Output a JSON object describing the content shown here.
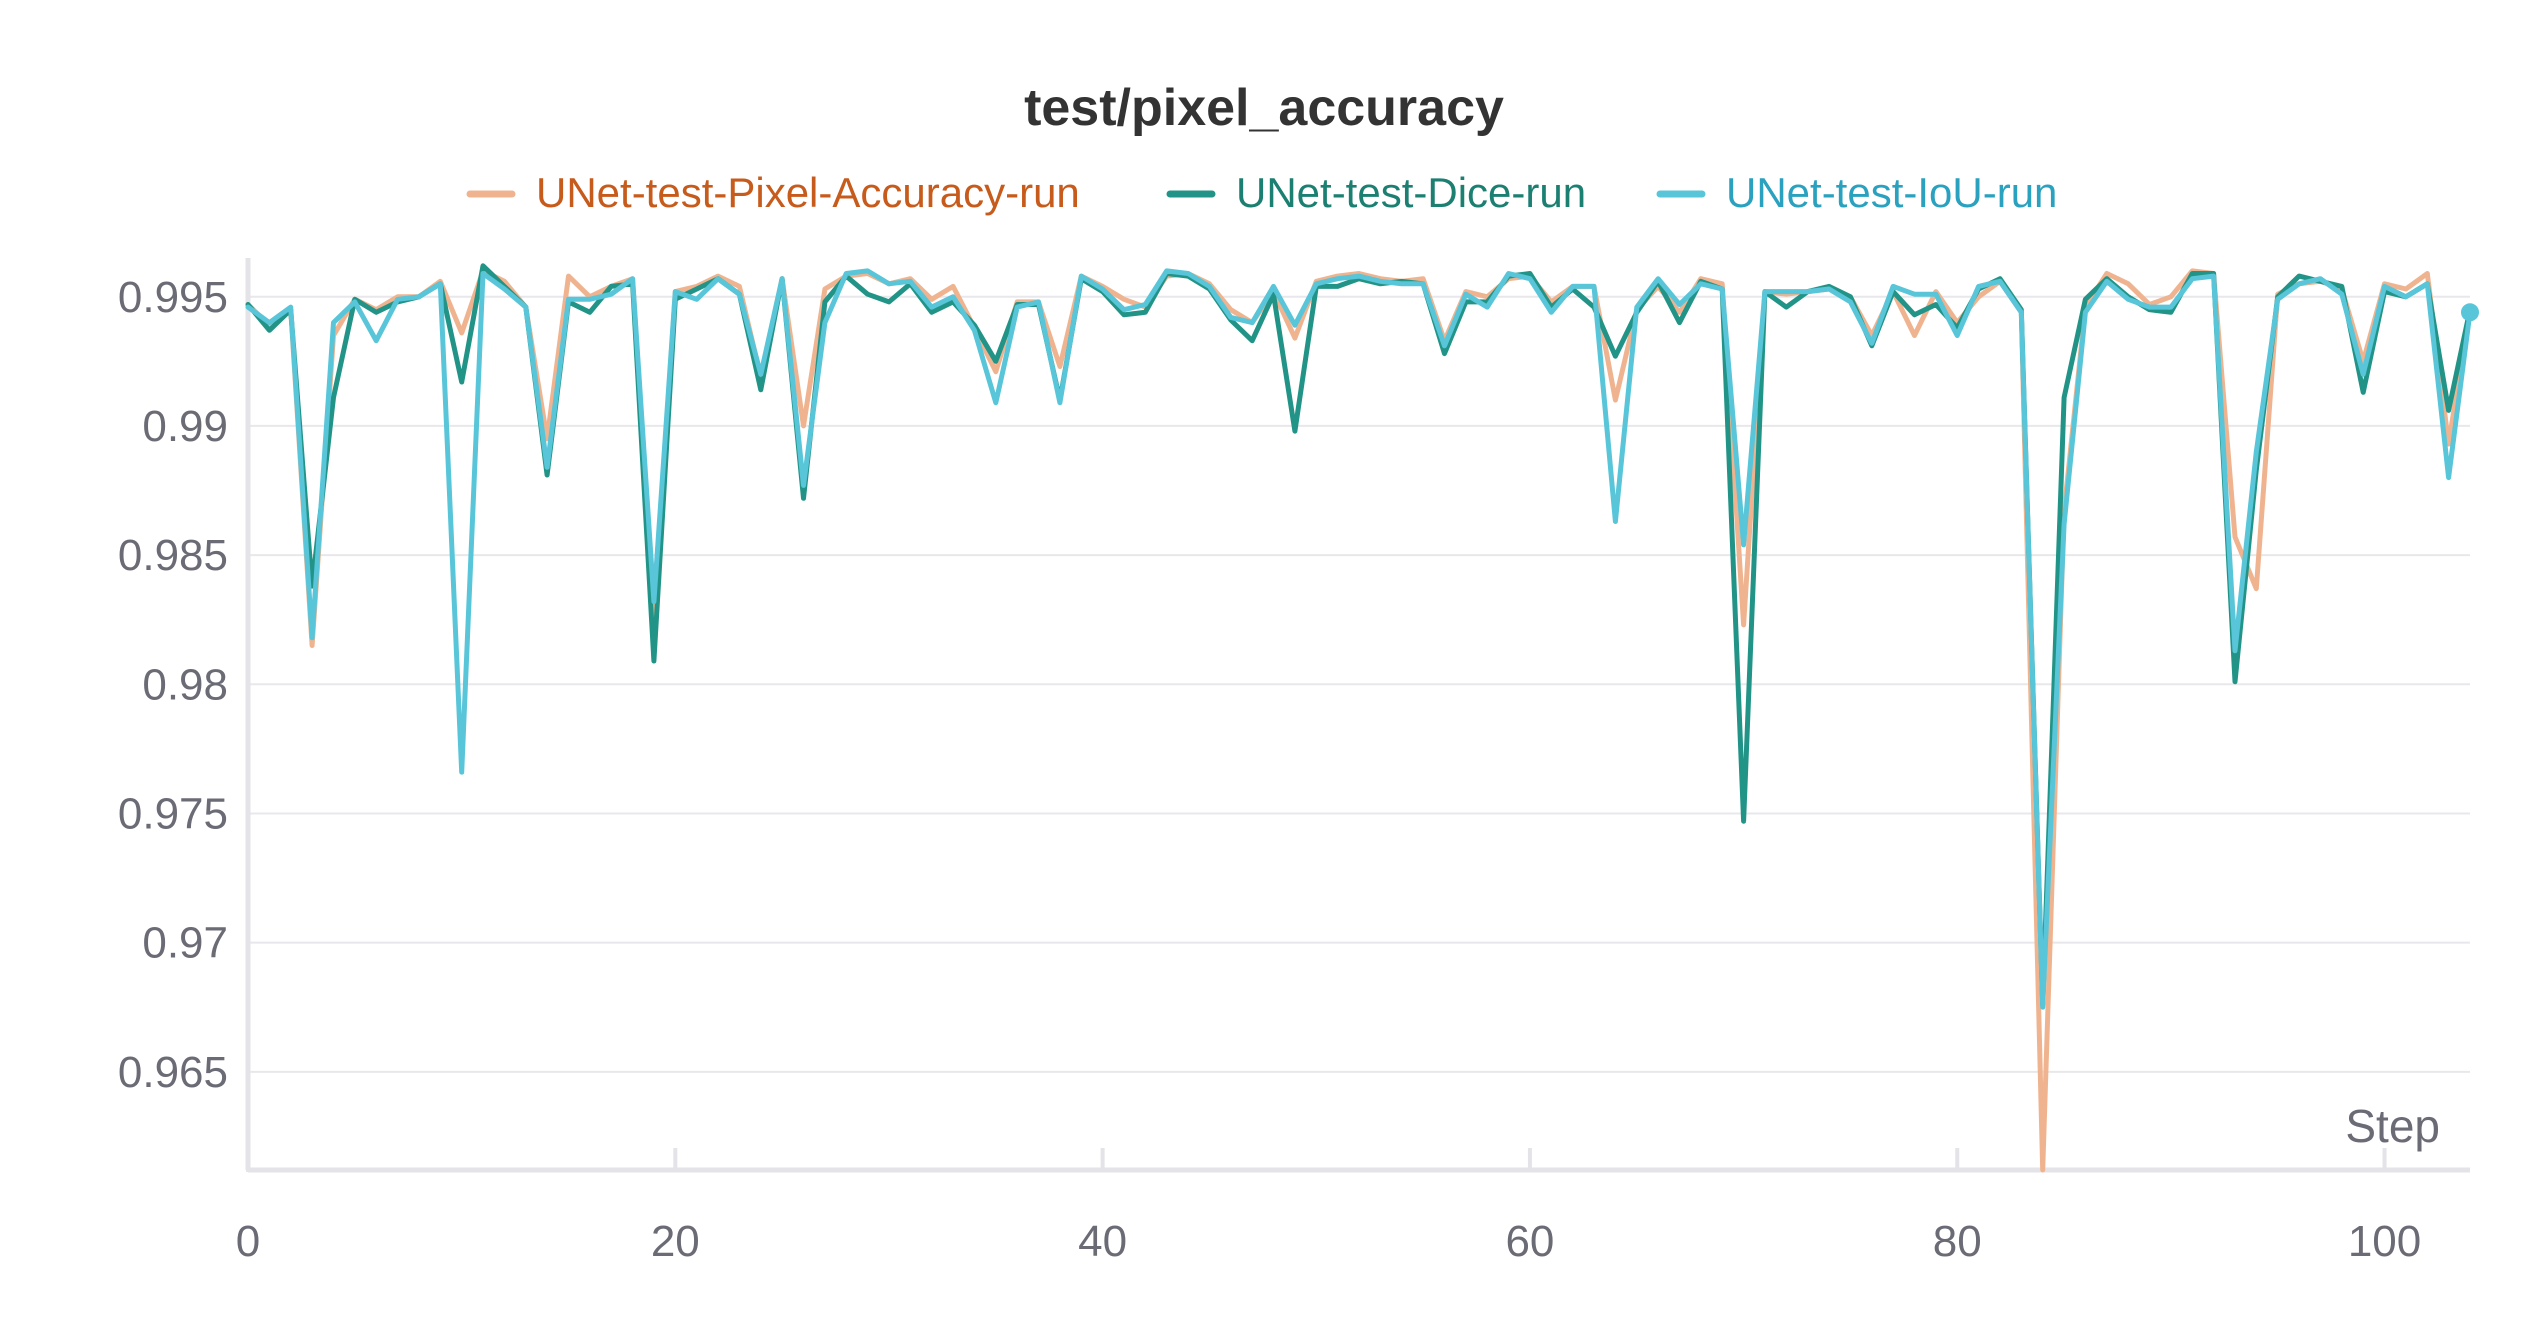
{
  "chart_data": {
    "type": "line",
    "title": "test/pixel_accuracy",
    "xlabel": "Step",
    "ylabel": "",
    "xlim": [
      0,
      104
    ],
    "ylim": [
      0.9612,
      0.9965
    ],
    "xticks": [
      "0",
      "20",
      "40",
      "60",
      "80",
      "100"
    ],
    "xtick_values": [
      0,
      20,
      40,
      60,
      80,
      100
    ],
    "yticks": [
      "0.965",
      "0.97",
      "0.975",
      "0.98",
      "0.985",
      "0.99",
      "0.995"
    ],
    "ytick_values": [
      0.965,
      0.97,
      0.975,
      0.98,
      0.985,
      0.99,
      0.995
    ],
    "grid": true,
    "legend_position": "top-center",
    "series": [
      {
        "name": "UNet-test-Pixel-Accuracy-run",
        "color": "#efb48f",
        "text_color": "#c75b1c",
        "values": [
          0.9947,
          0.9939,
          0.9945,
          0.9815,
          0.9935,
          0.9949,
          0.9945,
          0.995,
          0.995,
          0.9956,
          0.9936,
          0.996,
          0.9956,
          0.9946,
          0.9895,
          0.9958,
          0.995,
          0.9954,
          0.9957,
          0.9825,
          0.9952,
          0.9954,
          0.9958,
          0.9954,
          0.9919,
          0.9957,
          0.99,
          0.9953,
          0.9958,
          0.9959,
          0.9955,
          0.9957,
          0.9949,
          0.9954,
          0.9938,
          0.9921,
          0.9948,
          0.9948,
          0.9923,
          0.9958,
          0.9954,
          0.9949,
          0.9946,
          0.9958,
          0.9959,
          0.9955,
          0.9945,
          0.994,
          0.9952,
          0.9934,
          0.9956,
          0.9958,
          0.9959,
          0.9957,
          0.9956,
          0.9957,
          0.9933,
          0.9952,
          0.995,
          0.9957,
          0.9958,
          0.9948,
          0.9954,
          0.9954,
          0.991,
          0.9945,
          0.9954,
          0.9944,
          0.9957,
          0.9955,
          0.9823,
          0.9952,
          0.9951,
          0.9952,
          0.9953,
          0.995,
          0.9935,
          0.9952,
          0.9935,
          0.9952,
          0.994,
          0.995,
          0.9956,
          0.9944,
          0.9612,
          0.9867,
          0.9946,
          0.9959,
          0.9955,
          0.9947,
          0.995,
          0.996,
          0.9959,
          0.9857,
          0.9837,
          0.9951,
          0.9955,
          0.9956,
          0.9953,
          0.9925,
          0.9955,
          0.9953,
          0.9959,
          0.9893,
          0.9946
        ]
      },
      {
        "name": "UNet-test-Dice-run",
        "color": "#229487",
        "text_color": "#1b7f72",
        "values": [
          0.9947,
          0.9937,
          0.9945,
          0.9838,
          0.9911,
          0.9949,
          0.9944,
          0.9948,
          0.995,
          0.9955,
          0.9917,
          0.9962,
          0.9954,
          0.9946,
          0.9881,
          0.9948,
          0.9944,
          0.9954,
          0.9955,
          0.9809,
          0.9949,
          0.9953,
          0.9957,
          0.9951,
          0.9914,
          0.9957,
          0.9872,
          0.9948,
          0.9958,
          0.9951,
          0.9948,
          0.9955,
          0.9944,
          0.9948,
          0.9939,
          0.9925,
          0.9947,
          0.9947,
          0.991,
          0.9957,
          0.9952,
          0.9943,
          0.9944,
          0.9959,
          0.9958,
          0.9953,
          0.9941,
          0.9933,
          0.9951,
          0.9898,
          0.9954,
          0.9954,
          0.9957,
          0.9955,
          0.9956,
          0.9955,
          0.9928,
          0.9948,
          0.9948,
          0.9958,
          0.9959,
          0.9946,
          0.9953,
          0.9946,
          0.9927,
          0.9944,
          0.9956,
          0.994,
          0.9956,
          0.9953,
          0.9747,
          0.9952,
          0.9946,
          0.9952,
          0.9954,
          0.995,
          0.9931,
          0.9952,
          0.9943,
          0.9947,
          0.9938,
          0.9953,
          0.9957,
          0.9945,
          0.9676,
          0.9911,
          0.9949,
          0.9957,
          0.995,
          0.9945,
          0.9944,
          0.9959,
          0.9959,
          0.9801,
          0.9883,
          0.995,
          0.9958,
          0.9956,
          0.9954,
          0.9913,
          0.9952,
          0.995,
          0.9955,
          0.9906,
          0.9945
        ]
      },
      {
        "name": "UNet-test-IoU-run",
        "color": "#58c5d9",
        "text_color": "#2aa2bf",
        "values": [
          0.9946,
          0.994,
          0.9946,
          0.9818,
          0.994,
          0.9948,
          0.9933,
          0.9949,
          0.995,
          0.9955,
          0.9766,
          0.9959,
          0.9953,
          0.9946,
          0.9884,
          0.9949,
          0.9949,
          0.9951,
          0.9957,
          0.9832,
          0.9952,
          0.9949,
          0.9957,
          0.9951,
          0.992,
          0.9957,
          0.9877,
          0.994,
          0.9959,
          0.996,
          0.9955,
          0.9956,
          0.9946,
          0.995,
          0.9937,
          0.9909,
          0.9946,
          0.9948,
          0.9909,
          0.9958,
          0.9953,
          0.9945,
          0.9947,
          0.996,
          0.9959,
          0.9954,
          0.9942,
          0.994,
          0.9954,
          0.9939,
          0.9955,
          0.9957,
          0.9958,
          0.9956,
          0.9955,
          0.9955,
          0.9931,
          0.9951,
          0.9946,
          0.9959,
          0.9957,
          0.9944,
          0.9954,
          0.9954,
          0.9863,
          0.9946,
          0.9957,
          0.9947,
          0.9955,
          0.9953,
          0.9854,
          0.9952,
          0.9952,
          0.9952,
          0.9953,
          0.9948,
          0.9932,
          0.9954,
          0.9951,
          0.9951,
          0.9935,
          0.9954,
          0.9956,
          0.9944,
          0.9675,
          0.9862,
          0.9944,
          0.9956,
          0.9949,
          0.9946,
          0.9946,
          0.9957,
          0.9958,
          0.9813,
          0.989,
          0.9949,
          0.9955,
          0.9957,
          0.9951,
          0.992,
          0.9954,
          0.995,
          0.9955,
          0.988,
          0.9944
        ]
      }
    ]
  }
}
